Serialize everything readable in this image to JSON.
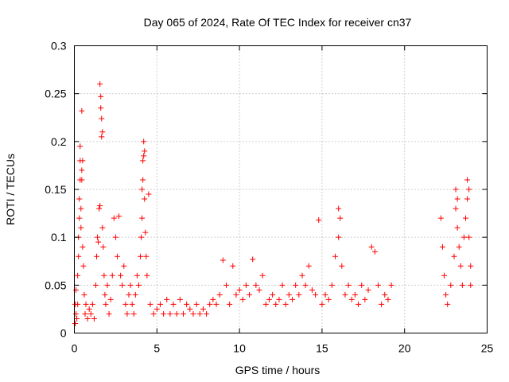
{
  "chart_data": {
    "type": "scatter",
    "title": "Day 065 of 2024, Rate Of TEC Index for receiver cn37",
    "xlabel": "GPS time / hours",
    "ylabel": "ROTI / TECUs",
    "xlim": [
      0,
      25
    ],
    "ylim": [
      0,
      0.3
    ],
    "x_ticks": [
      "0",
      "5",
      "10",
      "15",
      "20",
      "25"
    ],
    "y_ticks": [
      "0",
      "0.05",
      "0.1",
      "0.15",
      "0.2",
      "0.25",
      "0.3"
    ],
    "x_tick_values": [
      0,
      5,
      10,
      15,
      20,
      25
    ],
    "y_tick_values": [
      0,
      0.05,
      0.1,
      0.15,
      0.2,
      0.25,
      0.3
    ],
    "grid": true,
    "marker": "+",
    "marker_color": "#ff0000",
    "series": [
      {
        "points": [
          [
            0.05,
            0.01
          ],
          [
            0.05,
            0.03
          ],
          [
            0.1,
            0.045
          ],
          [
            0.1,
            0.02
          ],
          [
            0.15,
            0.015
          ],
          [
            0.2,
            0.03
          ],
          [
            0.2,
            0.06
          ],
          [
            0.25,
            0.08
          ],
          [
            0.25,
            0.1
          ],
          [
            0.3,
            0.12
          ],
          [
            0.3,
            0.14
          ],
          [
            0.35,
            0.16
          ],
          [
            0.35,
            0.18
          ],
          [
            0.35,
            0.195
          ],
          [
            0.4,
            0.13
          ],
          [
            0.4,
            0.11
          ],
          [
            0.45,
            0.232
          ],
          [
            0.45,
            0.16
          ],
          [
            0.45,
            0.17
          ],
          [
            0.5,
            0.18
          ],
          [
            0.5,
            0.09
          ],
          [
            0.55,
            0.07
          ],
          [
            0.6,
            0.04
          ],
          [
            0.65,
            0.02
          ],
          [
            0.7,
            0.03
          ],
          [
            0.8,
            0.015
          ],
          [
            0.9,
            0.025
          ],
          [
            1.0,
            0.02
          ],
          [
            1.1,
            0.03
          ],
          [
            1.2,
            0.015
          ],
          [
            1.3,
            0.05
          ],
          [
            1.35,
            0.08
          ],
          [
            1.4,
            0.1
          ],
          [
            1.45,
            0.095
          ],
          [
            1.5,
            0.13
          ],
          [
            1.55,
            0.133
          ],
          [
            1.55,
            0.26
          ],
          [
            1.6,
            0.247
          ],
          [
            1.6,
            0.235
          ],
          [
            1.65,
            0.224
          ],
          [
            1.65,
            0.205
          ],
          [
            1.7,
            0.21
          ],
          [
            1.7,
            0.11
          ],
          [
            1.75,
            0.09
          ],
          [
            1.8,
            0.06
          ],
          [
            1.85,
            0.04
          ],
          [
            1.9,
            0.03
          ],
          [
            2.0,
            0.05
          ],
          [
            2.1,
            0.02
          ],
          [
            2.2,
            0.035
          ],
          [
            2.3,
            0.06
          ],
          [
            2.4,
            0.12
          ],
          [
            2.5,
            0.1
          ],
          [
            2.6,
            0.08
          ],
          [
            2.7,
            0.122
          ],
          [
            2.8,
            0.06
          ],
          [
            2.9,
            0.05
          ],
          [
            3.0,
            0.07
          ],
          [
            3.1,
            0.03
          ],
          [
            3.2,
            0.02
          ],
          [
            3.3,
            0.04
          ],
          [
            3.4,
            0.05
          ],
          [
            3.5,
            0.03
          ],
          [
            3.6,
            0.02
          ],
          [
            3.7,
            0.04
          ],
          [
            3.8,
            0.06
          ],
          [
            3.9,
            0.05
          ],
          [
            4.0,
            0.08
          ],
          [
            4.05,
            0.1
          ],
          [
            4.1,
            0.12
          ],
          [
            4.1,
            0.15
          ],
          [
            4.15,
            0.16
          ],
          [
            4.15,
            0.18
          ],
          [
            4.2,
            0.185
          ],
          [
            4.2,
            0.2
          ],
          [
            4.25,
            0.19
          ],
          [
            4.25,
            0.14
          ],
          [
            4.3,
            0.105
          ],
          [
            4.35,
            0.08
          ],
          [
            4.4,
            0.06
          ],
          [
            4.5,
            0.145
          ],
          [
            4.6,
            0.03
          ],
          [
            4.8,
            0.02
          ],
          [
            5.0,
            0.025
          ],
          [
            5.2,
            0.03
          ],
          [
            5.4,
            0.02
          ],
          [
            5.6,
            0.035
          ],
          [
            5.8,
            0.02
          ],
          [
            6.0,
            0.03
          ],
          [
            6.2,
            0.02
          ],
          [
            6.4,
            0.035
          ],
          [
            6.6,
            0.02
          ],
          [
            6.8,
            0.03
          ],
          [
            7.0,
            0.025
          ],
          [
            7.2,
            0.02
          ],
          [
            7.4,
            0.03
          ],
          [
            7.6,
            0.02
          ],
          [
            7.8,
            0.025
          ],
          [
            8.0,
            0.02
          ],
          [
            8.2,
            0.03
          ],
          [
            8.4,
            0.035
          ],
          [
            8.6,
            0.03
          ],
          [
            8.8,
            0.04
          ],
          [
            9.0,
            0.076
          ],
          [
            9.2,
            0.05
          ],
          [
            9.4,
            0.03
          ],
          [
            9.6,
            0.07
          ],
          [
            9.8,
            0.04
          ],
          [
            10.0,
            0.045
          ],
          [
            10.2,
            0.035
          ],
          [
            10.4,
            0.05
          ],
          [
            10.6,
            0.04
          ],
          [
            10.8,
            0.077
          ],
          [
            11.0,
            0.05
          ],
          [
            11.2,
            0.045
          ],
          [
            11.4,
            0.06
          ],
          [
            11.6,
            0.03
          ],
          [
            11.8,
            0.035
          ],
          [
            12.0,
            0.04
          ],
          [
            12.2,
            0.03
          ],
          [
            12.4,
            0.035
          ],
          [
            12.6,
            0.05
          ],
          [
            12.8,
            0.03
          ],
          [
            13.0,
            0.04
          ],
          [
            13.2,
            0.035
          ],
          [
            13.4,
            0.05
          ],
          [
            13.6,
            0.04
          ],
          [
            13.8,
            0.06
          ],
          [
            14.0,
            0.05
          ],
          [
            14.2,
            0.07
          ],
          [
            14.4,
            0.045
          ],
          [
            14.6,
            0.04
          ],
          [
            14.8,
            0.118
          ],
          [
            15.0,
            0.03
          ],
          [
            15.2,
            0.04
          ],
          [
            15.4,
            0.035
          ],
          [
            15.6,
            0.05
          ],
          [
            15.8,
            0.08
          ],
          [
            16.0,
            0.1
          ],
          [
            16.0,
            0.13
          ],
          [
            16.1,
            0.12
          ],
          [
            16.2,
            0.07
          ],
          [
            16.4,
            0.04
          ],
          [
            16.6,
            0.05
          ],
          [
            16.8,
            0.035
          ],
          [
            17.0,
            0.04
          ],
          [
            17.2,
            0.03
          ],
          [
            17.4,
            0.05
          ],
          [
            17.6,
            0.035
          ],
          [
            17.8,
            0.045
          ],
          [
            18.0,
            0.09
          ],
          [
            18.2,
            0.085
          ],
          [
            18.4,
            0.05
          ],
          [
            18.6,
            0.03
          ],
          [
            18.8,
            0.04
          ],
          [
            19.0,
            0.035
          ],
          [
            19.2,
            0.05
          ],
          [
            22.2,
            0.12
          ],
          [
            22.3,
            0.09
          ],
          [
            22.4,
            0.06
          ],
          [
            22.5,
            0.04
          ],
          [
            22.6,
            0.03
          ],
          [
            22.8,
            0.05
          ],
          [
            23.0,
            0.08
          ],
          [
            23.1,
            0.13
          ],
          [
            23.1,
            0.15
          ],
          [
            23.2,
            0.14
          ],
          [
            23.2,
            0.11
          ],
          [
            23.3,
            0.09
          ],
          [
            23.4,
            0.07
          ],
          [
            23.5,
            0.05
          ],
          [
            23.6,
            0.1
          ],
          [
            23.7,
            0.12
          ],
          [
            23.8,
            0.16
          ],
          [
            23.8,
            0.14
          ],
          [
            23.9,
            0.15
          ],
          [
            23.9,
            0.1
          ],
          [
            24.0,
            0.07
          ],
          [
            24.0,
            0.05
          ]
        ]
      }
    ]
  }
}
